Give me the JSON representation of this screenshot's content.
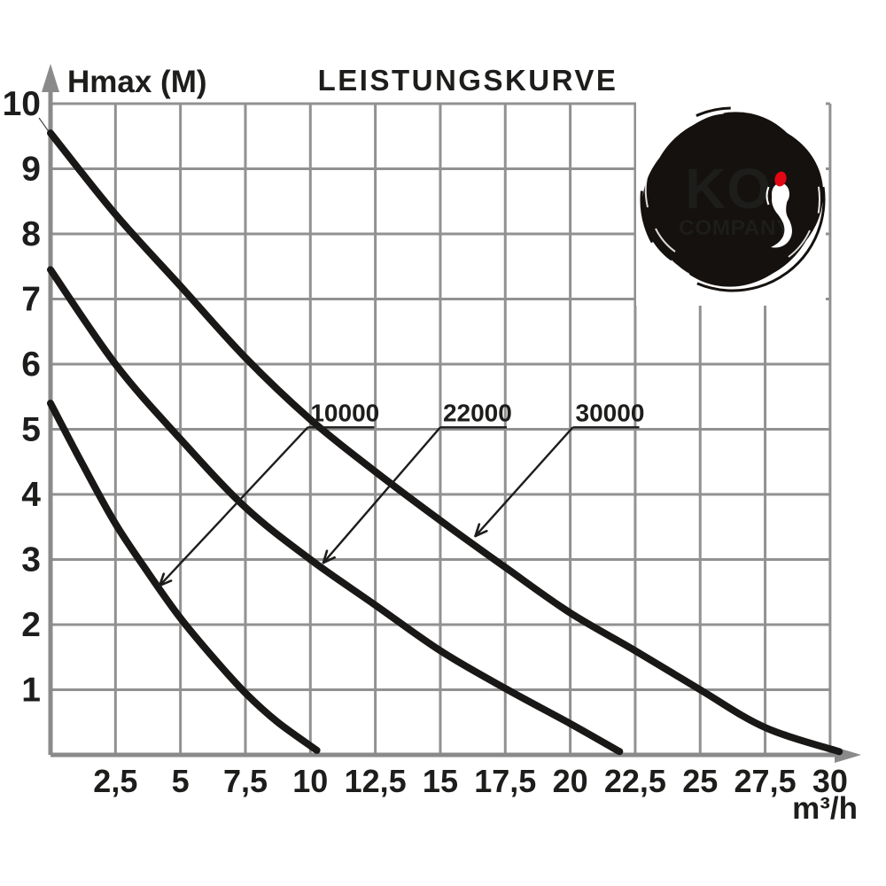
{
  "page": {
    "background": "#ffffff"
  },
  "colors": {
    "ink": "#1d1d1b",
    "curve": "#1a1817",
    "grid": "#919191",
    "axis": "#8a8a8a",
    "logo_red": "#e30613",
    "logo_black": "#14110e",
    "white": "#ffffff"
  },
  "chart_data": {
    "type": "line",
    "title": "LEISTUNGSKURVE",
    "ylabel": "Hmax (M)",
    "xlabel": "m³/h",
    "xlim": [
      0,
      30.5
    ],
    "ylim": [
      0,
      10
    ],
    "grid": true,
    "legend": "none",
    "x_ticks": {
      "values": [
        2.5,
        5,
        7.5,
        10,
        12.5,
        15,
        17.5,
        20,
        22.5,
        25,
        27.5,
        30
      ],
      "labels": [
        "2,5",
        "5",
        "7,5",
        "10",
        "12,5",
        "15",
        "17,5",
        "20",
        "22,5",
        "25",
        "27,5",
        "30"
      ]
    },
    "y_ticks": {
      "values": [
        1,
        2,
        3,
        4,
        5,
        6,
        7,
        8,
        9,
        10
      ],
      "labels": [
        "1",
        "2",
        "3",
        "4",
        "5",
        "6",
        "7",
        "8",
        "9",
        "10"
      ]
    },
    "series": [
      {
        "name": "10000",
        "points": [
          [
            0,
            5.4
          ],
          [
            1.25,
            4.45
          ],
          [
            2.5,
            3.55
          ],
          [
            3.75,
            2.8
          ],
          [
            5,
            2.1
          ],
          [
            6.25,
            1.5
          ],
          [
            7.5,
            0.95
          ],
          [
            8.75,
            0.5
          ],
          [
            10.25,
            0.07
          ]
        ]
      },
      {
        "name": "22000",
        "points": [
          [
            0,
            7.45
          ],
          [
            2.5,
            6.0
          ],
          [
            5,
            4.85
          ],
          [
            7.5,
            3.8
          ],
          [
            10,
            3.0
          ],
          [
            12.5,
            2.3
          ],
          [
            15,
            1.6
          ],
          [
            17.5,
            1.02
          ],
          [
            20,
            0.48
          ],
          [
            21.9,
            0.05
          ]
        ]
      },
      {
        "name": "30000",
        "points": [
          [
            0,
            9.55
          ],
          [
            2.5,
            8.3
          ],
          [
            5,
            7.2
          ],
          [
            7.5,
            6.1
          ],
          [
            10,
            5.15
          ],
          [
            12.5,
            4.35
          ],
          [
            15,
            3.6
          ],
          [
            17.5,
            2.88
          ],
          [
            20,
            2.18
          ],
          [
            22.5,
            1.6
          ],
          [
            25,
            1.0
          ],
          [
            27.5,
            0.42
          ],
          [
            30.35,
            0.05
          ]
        ]
      }
    ],
    "annotations": [
      {
        "label": "10000",
        "anchor": [
          9.9,
          5.03
        ],
        "tip": [
          4.2,
          2.6
        ]
      },
      {
        "label": "22000",
        "anchor": [
          15.0,
          5.03
        ],
        "tip": [
          10.5,
          2.95
        ]
      },
      {
        "label": "30000",
        "anchor": [
          20.1,
          5.03
        ],
        "tip": [
          16.35,
          3.36
        ]
      }
    ]
  },
  "logo": {
    "wordmark": "KO",
    "subtitle": "COMPANY",
    "emblem": "koi-fish-in-brush-circle"
  }
}
